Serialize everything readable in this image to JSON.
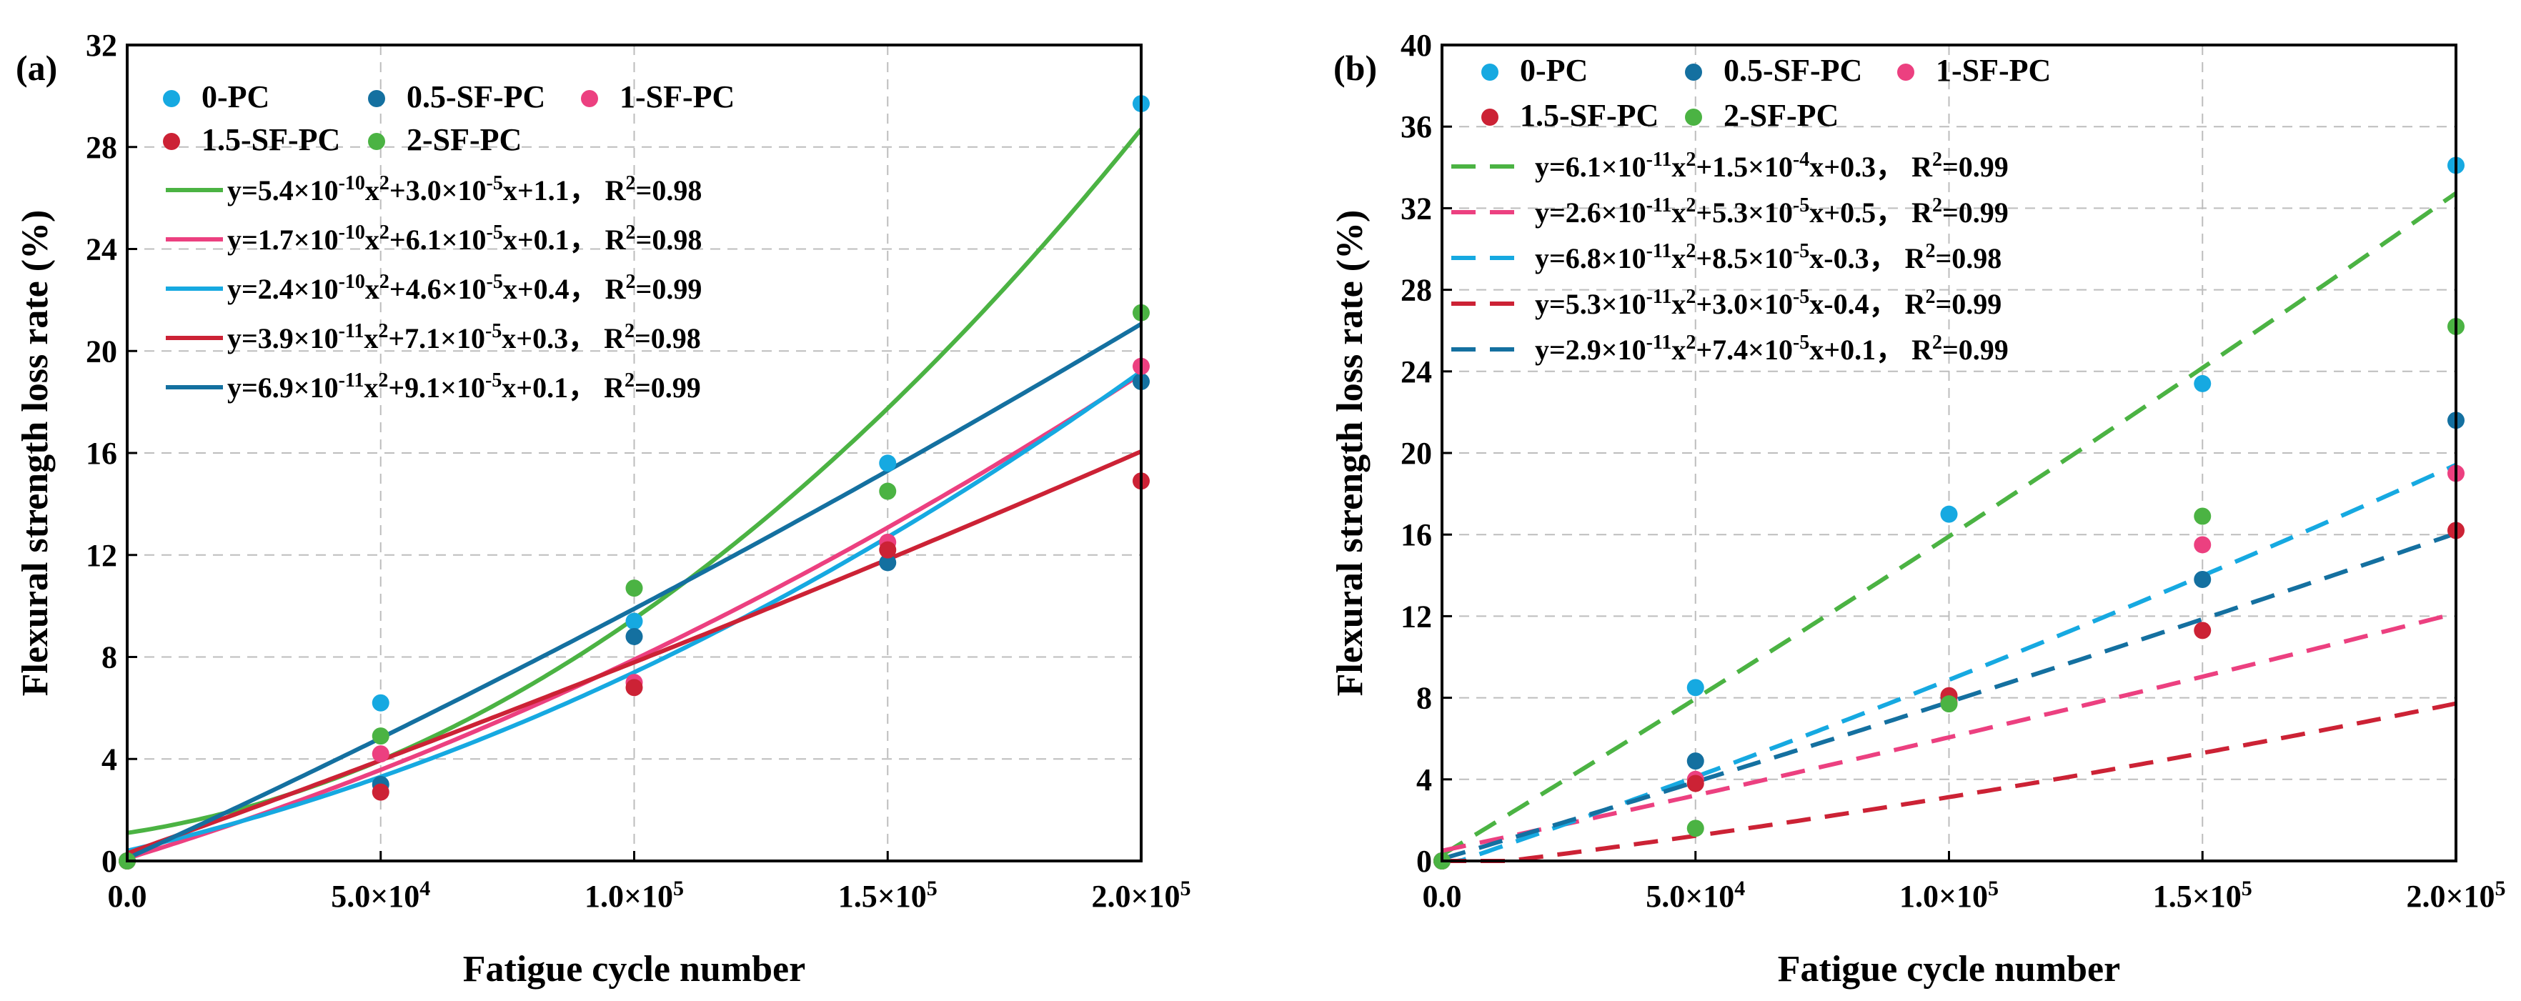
{
  "colors": {
    "0-PC": "#16a9e1",
    "0.5-SF-PC": "#1470a0",
    "1-SF-PC": "#ec4080",
    "1.5-SF-PC": "#cc2235",
    "2-SF-PC": "#4bb343",
    "axis": "#000000",
    "grid": "#bdbdbd"
  },
  "chart_data": [
    {
      "type": "scatter",
      "panel_label": "(a)",
      "xlabel": "Fatigue cycle number",
      "ylabel": "Flexural strength loss rate (%)",
      "xlim": [
        0,
        200000
      ],
      "ylim": [
        0,
        32
      ],
      "x_ticks": [
        0,
        50000,
        100000,
        150000,
        200000
      ],
      "x_tick_labels": [
        {
          "m": "0.0",
          "e": ""
        },
        {
          "m": "5.0×10",
          "e": "4"
        },
        {
          "m": "1.0×10",
          "e": "5"
        },
        {
          "m": "1.5×10",
          "e": "5"
        },
        {
          "m": "2.0×10",
          "e": "5"
        }
      ],
      "y_ticks": [
        0,
        4,
        8,
        12,
        16,
        20,
        24,
        28,
        32
      ],
      "y_tick_labels": [
        "0",
        "4",
        "8",
        "12",
        "16",
        "20",
        "24",
        "28",
        "32"
      ],
      "fit_style": "solid",
      "grid": true,
      "x": [
        0,
        50000,
        100000,
        150000,
        200000
      ],
      "series": [
        {
          "name": "0-PC",
          "values": [
            0,
            6.2,
            9.4,
            15.6,
            29.7
          ]
        },
        {
          "name": "0.5-SF-PC",
          "values": [
            0,
            3.0,
            8.8,
            11.7,
            18.8
          ]
        },
        {
          "name": "1-SF-PC",
          "values": [
            0,
            4.2,
            7.0,
            12.5,
            19.4
          ]
        },
        {
          "name": "1.5-SF-PC",
          "values": [
            0,
            2.7,
            6.8,
            12.2,
            14.9
          ]
        },
        {
          "name": "2-SF-PC",
          "values": [
            0,
            4.9,
            10.7,
            14.5,
            21.5
          ]
        }
      ],
      "legend_rows": [
        [
          "0-PC",
          "0.5-SF-PC",
          "1-SF-PC"
        ],
        [
          "1.5-SF-PC",
          "2-SF-PC"
        ]
      ],
      "legend_location": "upper left",
      "fits": [
        {
          "series": "2-SF-PC",
          "a": 5.4e-10,
          "b": 3e-05,
          "c": 1.1,
          "eq": [
            {
              "t": "y=5.4×10"
            },
            {
              "t": "-10",
              "sup": true
            },
            {
              "t": "x"
            },
            {
              "t": "2",
              "sup": true
            },
            {
              "t": "+3.0×10"
            },
            {
              "t": "-5",
              "sup": true
            },
            {
              "t": "x+1.1，  R"
            },
            {
              "t": "2",
              "sup": true
            },
            {
              "t": "=0.98"
            }
          ]
        },
        {
          "series": "1-SF-PC",
          "a": 1.7e-10,
          "b": 6.1e-05,
          "c": 0.1,
          "eq": [
            {
              "t": "y=1.7×10"
            },
            {
              "t": "-10",
              "sup": true
            },
            {
              "t": "x"
            },
            {
              "t": "2",
              "sup": true
            },
            {
              "t": "+6.1×10"
            },
            {
              "t": "-5",
              "sup": true
            },
            {
              "t": "x+0.1，  R"
            },
            {
              "t": "2",
              "sup": true
            },
            {
              "t": "=0.98"
            }
          ]
        },
        {
          "series": "0-PC",
          "a": 2.4e-10,
          "b": 4.6e-05,
          "c": 0.4,
          "eq": [
            {
              "t": "y=2.4×10"
            },
            {
              "t": "-10",
              "sup": true
            },
            {
              "t": "x"
            },
            {
              "t": "2",
              "sup": true
            },
            {
              "t": "+4.6×10"
            },
            {
              "t": "-5",
              "sup": true
            },
            {
              "t": "x+0.4，  R"
            },
            {
              "t": "2",
              "sup": true
            },
            {
              "t": "=0.99"
            }
          ]
        },
        {
          "series": "1.5-SF-PC",
          "a": 3.9e-11,
          "b": 7.1e-05,
          "c": 0.3,
          "eq": [
            {
              "t": "y=3.9×10"
            },
            {
              "t": "-11",
              "sup": true
            },
            {
              "t": "x"
            },
            {
              "t": "2",
              "sup": true
            },
            {
              "t": "+7.1×10"
            },
            {
              "t": "-5",
              "sup": true
            },
            {
              "t": "x+0.3，  R"
            },
            {
              "t": "2",
              "sup": true
            },
            {
              "t": "=0.98"
            }
          ]
        },
        {
          "series": "0.5-SF-PC",
          "a": 6.9e-11,
          "b": 9.1e-05,
          "c": 0.1,
          "eq": [
            {
              "t": "y=6.9×10"
            },
            {
              "t": "-11",
              "sup": true
            },
            {
              "t": "x"
            },
            {
              "t": "2",
              "sup": true
            },
            {
              "t": "+9.1×10"
            },
            {
              "t": "-5",
              "sup": true
            },
            {
              "t": "x+0.1，  R"
            },
            {
              "t": "2",
              "sup": true
            },
            {
              "t": "=0.99"
            }
          ]
        }
      ]
    },
    {
      "type": "scatter",
      "panel_label": "(b)",
      "xlabel": "Fatigue cycle number",
      "ylabel": "Flexural strength loss rate (%)",
      "xlim": [
        0,
        200000
      ],
      "ylim": [
        0,
        40
      ],
      "x_ticks": [
        0,
        50000,
        100000,
        150000,
        200000
      ],
      "x_tick_labels": [
        {
          "m": "0.0",
          "e": ""
        },
        {
          "m": "5.0×10",
          "e": "4"
        },
        {
          "m": "1.0×10",
          "e": "5"
        },
        {
          "m": "1.5×10",
          "e": "5"
        },
        {
          "m": "2.0×10",
          "e": "5"
        }
      ],
      "y_ticks": [
        0,
        4,
        8,
        12,
        16,
        20,
        24,
        28,
        32,
        36,
        40
      ],
      "y_tick_labels": [
        "0",
        "4",
        "8",
        "12",
        "16",
        "20",
        "24",
        "28",
        "32",
        "36",
        "40"
      ],
      "fit_style": "dashed",
      "grid": true,
      "x": [
        0,
        50000,
        100000,
        150000,
        200000
      ],
      "series": [
        {
          "name": "0-PC",
          "values": [
            0,
            8.5,
            17.0,
            23.4,
            34.1
          ]
        },
        {
          "name": "0.5-SF-PC",
          "values": [
            0,
            4.9,
            8.0,
            13.8,
            21.6
          ]
        },
        {
          "name": "1-SF-PC",
          "values": [
            0,
            4.0,
            7.8,
            15.5,
            19.0
          ]
        },
        {
          "name": "1.5-SF-PC",
          "values": [
            0,
            3.8,
            8.1,
            11.3,
            16.2
          ]
        },
        {
          "name": "2-SF-PC",
          "values": [
            0,
            1.6,
            7.7,
            16.9,
            26.2
          ]
        }
      ],
      "legend_rows": [
        [
          "0-PC",
          "0.5-SF-PC",
          "1-SF-PC"
        ],
        [
          "1.5-SF-PC",
          "2-SF-PC"
        ]
      ],
      "legend_location": "upper left",
      "fits": [
        {
          "series": "2-SF-PC",
          "a": 6.1e-11,
          "b": 0.00015,
          "c": 0.3,
          "eq": [
            {
              "t": "y=6.1×10"
            },
            {
              "t": "-11",
              "sup": true
            },
            {
              "t": "x"
            },
            {
              "t": "2",
              "sup": true
            },
            {
              "t": "+1.5×10"
            },
            {
              "t": "-4",
              "sup": true
            },
            {
              "t": "x+0.3，  R"
            },
            {
              "t": "2",
              "sup": true
            },
            {
              "t": "=0.99"
            }
          ]
        },
        {
          "series": "1-SF-PC",
          "a": 2.6e-11,
          "b": 5.3e-05,
          "c": 0.5,
          "eq": [
            {
              "t": "y=2.6×10"
            },
            {
              "t": "-11",
              "sup": true
            },
            {
              "t": "x"
            },
            {
              "t": "2",
              "sup": true
            },
            {
              "t": "+5.3×10"
            },
            {
              "t": "-5",
              "sup": true
            },
            {
              "t": "x+0.5，  R"
            },
            {
              "t": "2",
              "sup": true
            },
            {
              "t": "=0.99"
            }
          ]
        },
        {
          "series": "0-PC",
          "a": 6.8e-11,
          "b": 8.5e-05,
          "c": -0.3,
          "eq": [
            {
              "t": "y=6.8×10"
            },
            {
              "t": "-11",
              "sup": true
            },
            {
              "t": "x"
            },
            {
              "t": "2",
              "sup": true
            },
            {
              "t": "+8.5×10"
            },
            {
              "t": "-5",
              "sup": true
            },
            {
              "t": "x-0.3，  R"
            },
            {
              "t": "2",
              "sup": true
            },
            {
              "t": "=0.98"
            }
          ]
        },
        {
          "series": "1.5-SF-PC",
          "a": 5.3e-11,
          "b": 3e-05,
          "c": -0.4,
          "eq": [
            {
              "t": "y=5.3×10"
            },
            {
              "t": "-11",
              "sup": true
            },
            {
              "t": "x"
            },
            {
              "t": "2",
              "sup": true
            },
            {
              "t": "+3.0×10"
            },
            {
              "t": "-5",
              "sup": true
            },
            {
              "t": "x-0.4，  R"
            },
            {
              "t": "2",
              "sup": true
            },
            {
              "t": "=0.99"
            }
          ]
        },
        {
          "series": "0.5-SF-PC",
          "a": 2.9e-11,
          "b": 7.4e-05,
          "c": 0.1,
          "eq": [
            {
              "t": "y=2.9×10"
            },
            {
              "t": "-11",
              "sup": true
            },
            {
              "t": "x"
            },
            {
              "t": "2",
              "sup": true
            },
            {
              "t": "+7.4×10"
            },
            {
              "t": "-5",
              "sup": true
            },
            {
              "t": "x+0.1，  R"
            },
            {
              "t": "2",
              "sup": true
            },
            {
              "t": "=0.99"
            }
          ]
        }
      ]
    }
  ]
}
